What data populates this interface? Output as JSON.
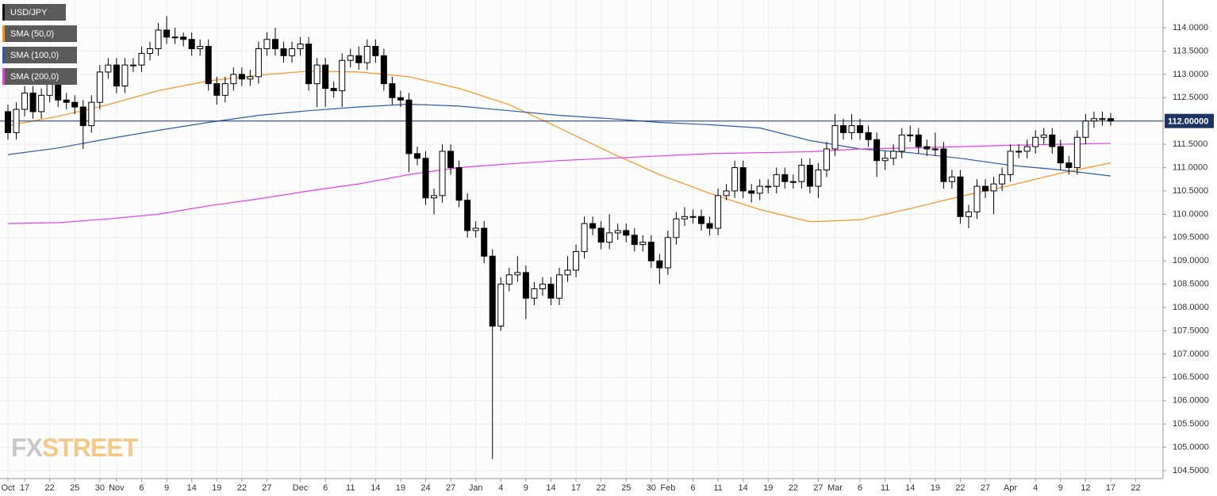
{
  "chart_data": {
    "type": "candlestick",
    "xlim": [
      -0.95,
      138.27
    ],
    "ylim": [
      104.33,
      114.595
    ],
    "grid": true,
    "legend": "top-left",
    "yticks": [
      {
        "value": 104.5,
        "label": "104.5000"
      },
      {
        "value": 105,
        "label": "105.0000"
      },
      {
        "value": 105.5,
        "label": "105.5000"
      },
      {
        "value": 106,
        "label": "106.0000"
      },
      {
        "value": 106.5,
        "label": "106.5000"
      },
      {
        "value": 107,
        "label": "107.0000"
      },
      {
        "value": 107.5,
        "label": "107.5000"
      },
      {
        "value": 108,
        "label": "108.0000"
      },
      {
        "value": 108.5,
        "label": "108.5000"
      },
      {
        "value": 109,
        "label": "109.0000"
      },
      {
        "value": 109.5,
        "label": "109.5000"
      },
      {
        "value": 110,
        "label": "110.0000"
      },
      {
        "value": 110.5,
        "label": "110.5000"
      },
      {
        "value": 111,
        "label": "111.0000"
      },
      {
        "value": 111.5,
        "label": "111.5000"
      },
      {
        "value": 112,
        "label": "112.0000"
      },
      {
        "value": 112.5,
        "label": "112.5000"
      },
      {
        "value": 113,
        "label": "113.0000"
      },
      {
        "value": 113.5,
        "label": "113.5000"
      },
      {
        "value": 114,
        "label": "114.0000"
      }
    ],
    "xticks": [
      {
        "value": 0,
        "label": "Oct"
      },
      {
        "value": 2,
        "label": "17"
      },
      {
        "value": 5,
        "label": "22"
      },
      {
        "value": 8,
        "label": "25"
      },
      {
        "value": 11,
        "label": "30"
      },
      {
        "value": 13,
        "label": "Nov"
      },
      {
        "value": 16,
        "label": "6"
      },
      {
        "value": 19,
        "label": "9"
      },
      {
        "value": 22,
        "label": "14"
      },
      {
        "value": 25,
        "label": "19"
      },
      {
        "value": 28,
        "label": "22"
      },
      {
        "value": 31,
        "label": "27"
      },
      {
        "value": 35,
        "label": "Dec"
      },
      {
        "value": 38,
        "label": "6"
      },
      {
        "value": 41,
        "label": "11"
      },
      {
        "value": 44,
        "label": "14"
      },
      {
        "value": 47,
        "label": "19"
      },
      {
        "value": 50,
        "label": "24"
      },
      {
        "value": 53,
        "label": "27"
      },
      {
        "value": 56,
        "label": "Jan"
      },
      {
        "value": 59,
        "label": "4"
      },
      {
        "value": 62,
        "label": "9"
      },
      {
        "value": 65,
        "label": "14"
      },
      {
        "value": 68,
        "label": "17"
      },
      {
        "value": 71,
        "label": "22"
      },
      {
        "value": 74,
        "label": "25"
      },
      {
        "value": 77,
        "label": "30"
      },
      {
        "value": 79,
        "label": "Feb"
      },
      {
        "value": 82,
        "label": "6"
      },
      {
        "value": 85,
        "label": "11"
      },
      {
        "value": 88,
        "label": "14"
      },
      {
        "value": 91,
        "label": "19"
      },
      {
        "value": 94,
        "label": "22"
      },
      {
        "value": 97,
        "label": "27"
      },
      {
        "value": 99,
        "label": "Mar"
      },
      {
        "value": 102,
        "label": "6"
      },
      {
        "value": 105,
        "label": "11"
      },
      {
        "value": 108,
        "label": "14"
      },
      {
        "value": 111,
        "label": "19"
      },
      {
        "value": 114,
        "label": "22"
      },
      {
        "value": 117,
        "label": "27"
      },
      {
        "value": 120,
        "label": "Apr"
      },
      {
        "value": 123,
        "label": "4"
      },
      {
        "value": 126,
        "label": "9"
      },
      {
        "value": 129,
        "label": "12"
      },
      {
        "value": 132,
        "label": "17"
      },
      {
        "value": 135,
        "label": "22"
      }
    ],
    "price_line": {
      "value": 112,
      "label": "112.00000",
      "color": "#1b3461"
    },
    "watermark": [
      "FX",
      "STREET"
    ],
    "series": [
      {
        "name": "USD/JPY",
        "color": "#000000",
        "open": [
          112.2,
          111.75,
          112.25,
          112.6,
          112.2,
          112.55,
          112.85,
          112.45,
          112.4,
          112.3,
          111.9,
          112.4,
          113.05,
          113.2,
          112.75,
          113.2,
          113.2,
          113.45,
          113.55,
          113.95,
          113.8,
          113.8,
          113.75,
          113.55,
          113.6,
          112.8,
          112.55,
          112.8,
          113.0,
          112.9,
          112.95,
          113.55,
          113.75,
          113.55,
          113.4,
          113.55,
          113.65,
          112.8,
          113.2,
          112.7,
          112.65,
          113.3,
          113.4,
          113.25,
          113.6,
          113.4,
          112.8,
          112.5,
          112.45,
          111.3,
          111.2,
          110.35,
          110.4,
          111.35,
          111.0,
          110.3,
          109.65,
          109.7,
          109.1,
          107.6,
          108.5,
          108.7,
          108.75,
          108.2,
          108.4,
          108.5,
          108.2,
          108.7,
          108.8,
          109.2,
          109.8,
          109.7,
          109.4,
          109.6,
          109.65,
          109.55,
          109.35,
          109.4,
          109.0,
          108.85,
          109.5,
          109.9,
          109.95,
          109.95,
          109.8,
          109.7,
          110.4,
          110.5,
          111.0,
          110.5,
          110.45,
          110.6,
          110.6,
          110.85,
          110.7,
          110.7,
          111.05,
          110.6,
          110.95,
          111.4,
          111.9,
          111.75,
          111.9,
          111.75,
          111.6,
          111.15,
          111.2,
          111.35,
          111.7,
          111.7,
          111.45,
          111.4,
          111.4,
          110.7,
          110.8,
          109.95,
          110.05,
          110.6,
          110.5,
          110.65,
          110.85,
          111.35,
          111.35,
          111.45,
          111.65,
          111.7,
          111.45,
          111.1,
          111.0,
          111.65,
          112.0,
          112.05,
          112.05
        ],
        "high": [
          112.35,
          112.4,
          112.75,
          112.75,
          112.7,
          113.0,
          113.0,
          112.6,
          112.55,
          112.45,
          112.55,
          113.2,
          113.35,
          113.35,
          113.35,
          113.35,
          113.6,
          113.7,
          114.1,
          114.25,
          114.0,
          113.9,
          113.9,
          113.75,
          113.75,
          112.95,
          112.95,
          113.15,
          113.15,
          113.1,
          113.7,
          113.9,
          114.0,
          113.7,
          113.7,
          113.8,
          113.8,
          113.35,
          113.35,
          112.85,
          113.45,
          113.55,
          113.6,
          113.75,
          113.75,
          113.55,
          112.95,
          112.65,
          112.6,
          111.45,
          111.35,
          110.55,
          111.5,
          111.5,
          111.15,
          110.45,
          109.85,
          109.85,
          109.25,
          108.65,
          108.85,
          109.1,
          108.9,
          108.55,
          108.65,
          108.65,
          108.85,
          109.1,
          109.35,
          109.95,
          109.95,
          109.85,
          110.0,
          109.8,
          109.8,
          109.7,
          109.55,
          109.55,
          109.15,
          109.65,
          110.05,
          110.15,
          110.1,
          110.1,
          109.95,
          110.55,
          110.65,
          111.15,
          111.15,
          110.65,
          110.75,
          110.75,
          111.0,
          111.0,
          110.85,
          111.2,
          111.2,
          111.1,
          111.55,
          112.15,
          112.05,
          112.15,
          112.05,
          111.9,
          111.75,
          111.35,
          111.5,
          111.85,
          111.9,
          111.85,
          111.6,
          111.75,
          111.55,
          110.95,
          110.95,
          110.2,
          110.75,
          110.75,
          110.8,
          111.0,
          111.5,
          111.5,
          111.6,
          111.8,
          111.85,
          111.85,
          111.6,
          111.25,
          111.8,
          112.15,
          112.2,
          112.2,
          112.17
        ],
        "low": [
          111.6,
          111.6,
          112.1,
          112.05,
          112.05,
          112.4,
          112.3,
          112.25,
          112.15,
          111.4,
          111.75,
          112.25,
          112.9,
          112.6,
          112.6,
          113.05,
          113.05,
          113.3,
          113.4,
          113.65,
          113.65,
          113.6,
          113.4,
          113.4,
          112.65,
          112.35,
          112.4,
          112.65,
          112.75,
          112.75,
          112.8,
          113.4,
          113.4,
          113.25,
          113.25,
          113.4,
          112.65,
          112.3,
          112.3,
          112.5,
          112.3,
          113.15,
          113.1,
          113.1,
          113.25,
          112.65,
          112.35,
          112.3,
          110.9,
          111.05,
          110.2,
          110.0,
          110.25,
          110.85,
          110.15,
          109.5,
          109.5,
          108.95,
          104.75,
          107.5,
          108.35,
          108.55,
          107.75,
          108.05,
          108.25,
          108.05,
          108.05,
          108.55,
          108.65,
          109.05,
          109.55,
          109.25,
          109.25,
          109.45,
          109.4,
          109.2,
          109.2,
          108.85,
          108.5,
          108.7,
          109.35,
          109.75,
          109.8,
          109.65,
          109.55,
          109.55,
          110.3,
          110.35,
          110.35,
          110.25,
          110.3,
          110.45,
          110.45,
          110.55,
          110.55,
          110.55,
          110.45,
          110.35,
          110.8,
          111.25,
          111.6,
          111.6,
          111.6,
          111.45,
          110.8,
          110.95,
          111.05,
          111.2,
          111.55,
          111.3,
          111.25,
          111.25,
          110.55,
          110.55,
          109.8,
          109.7,
          109.9,
          110.35,
          110.0,
          110.5,
          110.7,
          111.2,
          111.2,
          111.3,
          111.5,
          111.3,
          110.95,
          110.85,
          110.85,
          111.5,
          111.85,
          111.9,
          111.9
        ],
        "close": [
          111.75,
          112.25,
          112.6,
          112.2,
          112.55,
          112.85,
          112.45,
          112.4,
          112.3,
          111.9,
          112.4,
          113.05,
          113.2,
          112.75,
          113.2,
          113.2,
          113.45,
          113.55,
          113.95,
          113.8,
          113.8,
          113.75,
          113.55,
          113.6,
          112.8,
          112.55,
          112.8,
          113.0,
          112.9,
          112.95,
          113.55,
          113.75,
          113.55,
          113.4,
          113.55,
          113.65,
          112.8,
          113.2,
          112.7,
          112.65,
          113.3,
          113.4,
          113.25,
          113.6,
          113.4,
          112.8,
          112.5,
          112.45,
          111.3,
          111.2,
          110.35,
          110.4,
          111.35,
          111.0,
          110.3,
          109.65,
          109.7,
          109.1,
          107.6,
          108.5,
          108.7,
          108.75,
          108.2,
          108.4,
          108.5,
          108.2,
          108.7,
          108.8,
          109.2,
          109.8,
          109.7,
          109.4,
          109.6,
          109.65,
          109.55,
          109.35,
          109.4,
          109.0,
          108.85,
          109.5,
          109.9,
          109.95,
          109.95,
          109.8,
          109.7,
          110.4,
          110.5,
          111.0,
          110.5,
          110.45,
          110.6,
          110.6,
          110.85,
          110.7,
          110.7,
          111.05,
          110.6,
          110.95,
          111.4,
          111.9,
          111.75,
          111.9,
          111.75,
          111.6,
          111.15,
          111.2,
          111.35,
          111.7,
          111.7,
          111.45,
          111.4,
          111.4,
          110.7,
          110.8,
          109.95,
          110.05,
          110.6,
          110.5,
          110.65,
          110.85,
          111.35,
          111.35,
          111.45,
          111.65,
          111.7,
          111.45,
          111.1,
          111.0,
          111.65,
          112.0,
          112.05,
          112.05,
          112.0
        ]
      },
      {
        "name": "SMA (50,0)",
        "type": "line",
        "color": "#f7931e",
        "x": [
          0,
          6,
          12,
          18,
          24,
          30,
          36,
          42,
          48,
          54,
          60,
          66,
          72,
          78,
          84,
          90,
          96,
          102,
          108,
          114,
          120,
          126,
          132
        ],
        "values": [
          111.9,
          112.1,
          112.35,
          112.65,
          112.86,
          112.98,
          113.07,
          113.05,
          112.95,
          112.7,
          112.35,
          111.85,
          111.33,
          110.85,
          110.45,
          110.1,
          109.84,
          109.88,
          110.12,
          110.38,
          110.62,
          110.88,
          111.1
        ]
      },
      {
        "name": "SMA (100,0)",
        "type": "line",
        "color": "#2b5ca8",
        "x": [
          0,
          6,
          12,
          18,
          24,
          30,
          36,
          42,
          48,
          54,
          60,
          66,
          72,
          78,
          84,
          90,
          96,
          102,
          108,
          114,
          120,
          126,
          132
        ],
        "values": [
          111.28,
          111.42,
          111.62,
          111.8,
          111.97,
          112.12,
          112.22,
          112.3,
          112.36,
          112.32,
          112.22,
          112.12,
          112.05,
          111.97,
          111.92,
          111.85,
          111.58,
          111.4,
          111.32,
          111.2,
          111.05,
          110.95,
          110.82
        ]
      },
      {
        "name": "SMA (200,0)",
        "type": "line",
        "color": "#e23fe6",
        "x": [
          0,
          6,
          12,
          18,
          24,
          30,
          36,
          42,
          48,
          54,
          60,
          66,
          72,
          78,
          84,
          90,
          96,
          102,
          108,
          114,
          120,
          126,
          132
        ],
        "values": [
          109.8,
          109.82,
          109.9,
          110.0,
          110.18,
          110.33,
          110.5,
          110.65,
          110.85,
          111.0,
          111.08,
          111.15,
          111.2,
          111.25,
          111.3,
          111.32,
          111.34,
          111.4,
          111.42,
          111.45,
          111.48,
          111.5,
          111.52
        ]
      }
    ]
  }
}
